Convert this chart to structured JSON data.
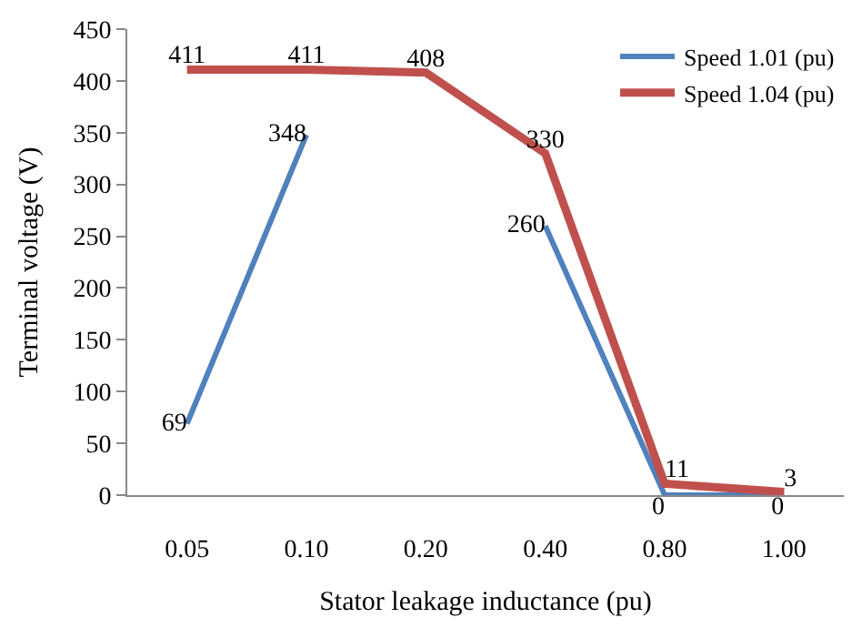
{
  "chart_data": {
    "type": "line",
    "xlabel": "Stator leakage inductance (pu)",
    "ylabel": "Terminal voltage (V)",
    "categories": [
      "0.05",
      "0.10",
      "0.20",
      "0.40",
      "0.80",
      "1.00"
    ],
    "series": [
      {
        "name": "Speed 1.01 (pu)",
        "color": "#4f81bd",
        "values": [
          69,
          348,
          null,
          260,
          0,
          0
        ]
      },
      {
        "name": "Speed 1.04 (pu)",
        "color": "#c0504d",
        "values": [
          411,
          411,
          408,
          330,
          11,
          3
        ]
      }
    ],
    "ylim": [
      0,
      450
    ],
    "yticks": [
      0,
      50,
      100,
      150,
      200,
      250,
      300,
      350,
      400,
      450
    ],
    "data_labels": true,
    "legend": "top right",
    "marker": "none",
    "line_style": "solid"
  }
}
